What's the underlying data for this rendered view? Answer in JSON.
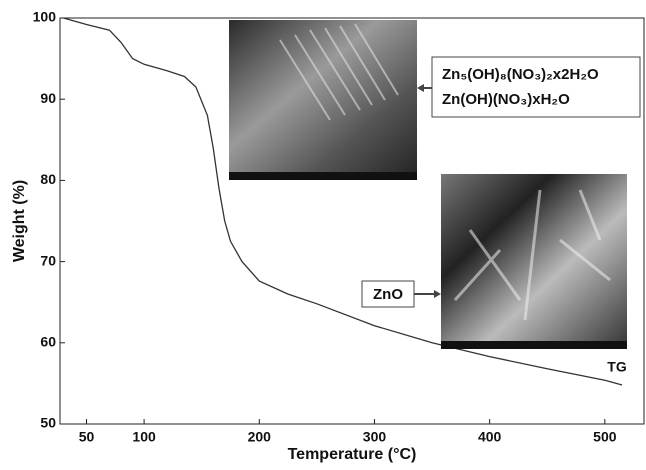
{
  "chart_data": {
    "type": "line",
    "xlabel": "Temperature (°C)",
    "ylabel": "Weight (%)",
    "x": [
      30,
      50,
      70,
      80,
      90,
      100,
      120,
      135,
      145,
      155,
      160,
      165,
      170,
      175,
      185,
      200,
      225,
      250,
      300,
      350,
      400,
      450,
      500,
      515
    ],
    "values": [
      100,
      99.2,
      98.5,
      97,
      95,
      94.3,
      93.5,
      92.8,
      91.5,
      88,
      84,
      79,
      75,
      72.5,
      70,
      67.6,
      66,
      64.8,
      62.1,
      60,
      58.3,
      56.8,
      55.4,
      54.8
    ],
    "color": "#333333",
    "xlim": [
      27,
      534
    ],
    "xticks": [
      50,
      100,
      200,
      300,
      400,
      500
    ],
    "ylim": [
      50,
      100
    ],
    "yticks": [
      50,
      60,
      70,
      80,
      90,
      100
    ],
    "annotations": {
      "precursor_line1": "Zn₅(OH)₈(NO₃)₂x2H₂O",
      "precursor_line2": "Zn(OH)(NO₃)xH₂O",
      "product": "ZnO",
      "curve": "TG"
    }
  }
}
